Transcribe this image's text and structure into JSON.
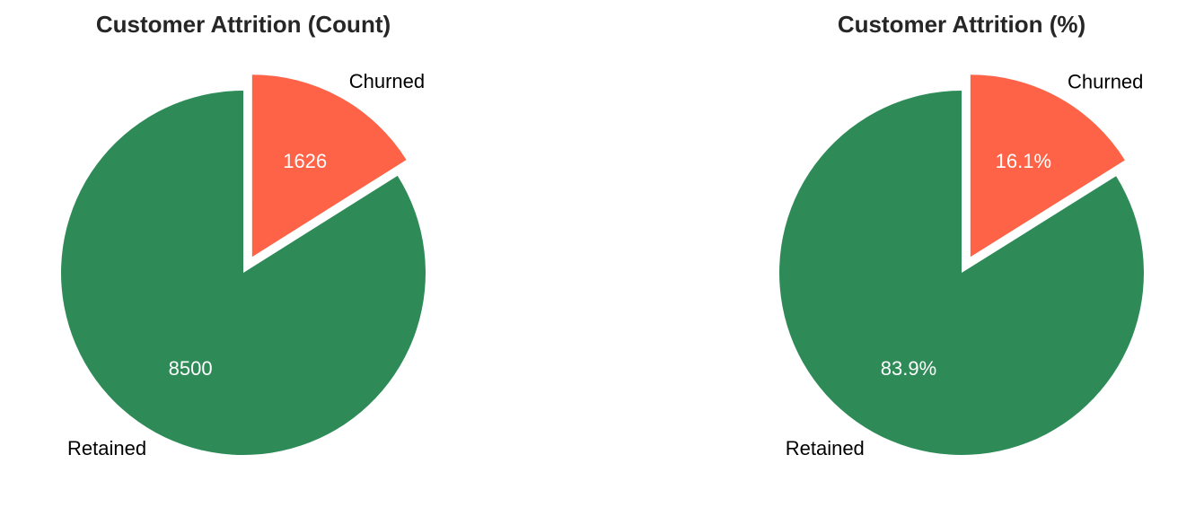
{
  "chart_data": [
    {
      "type": "pie",
      "title": "Customer Attrition (Count)",
      "labels": [
        "Retained",
        "Churned"
      ],
      "values": [
        8500,
        1626
      ],
      "value_labels": [
        "8500",
        "1626"
      ],
      "explode": [
        0,
        0.1
      ],
      "start_angle_deg": 90,
      "colors": [
        "#2e8b57",
        "#ff6347"
      ]
    },
    {
      "type": "pie",
      "title": "Customer Attrition (%)",
      "labels": [
        "Retained",
        "Churned"
      ],
      "values": [
        83.9,
        16.1
      ],
      "value_labels": [
        "83.9%",
        "16.1%"
      ],
      "explode": [
        0,
        0.1
      ],
      "start_angle_deg": 90,
      "colors": [
        "#2e8b57",
        "#ff6347"
      ]
    }
  ]
}
